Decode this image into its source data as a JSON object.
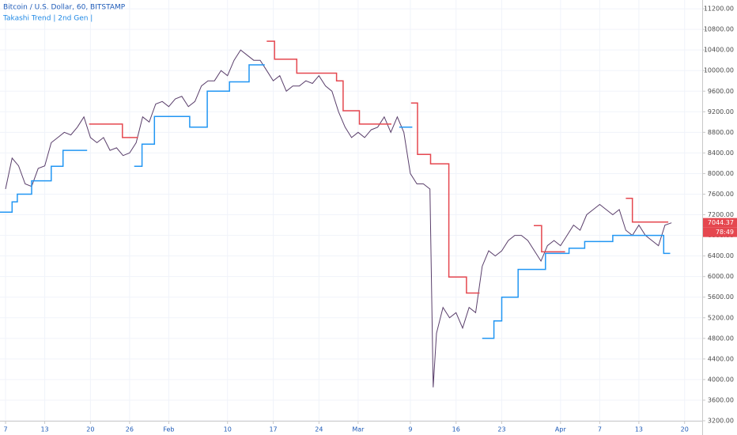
{
  "chart_data": {
    "type": "line",
    "title": "Bitcoin / U.S. Dollar, 60, BITSTAMP",
    "subtitle": "Takashi Trend | 2nd Gen |",
    "xlim": [
      -0.85,
      106.7
    ],
    "ylim": [
      3200,
      11370
    ],
    "xticks": [
      {
        "value": 0,
        "label": "7"
      },
      {
        "value": 6,
        "label": "13"
      },
      {
        "value": 13,
        "label": "20"
      },
      {
        "value": 19,
        "label": "26"
      },
      {
        "value": 25,
        "label": "Feb"
      },
      {
        "value": 34,
        "label": "10"
      },
      {
        "value": 41,
        "label": "17"
      },
      {
        "value": 48,
        "label": "24"
      },
      {
        "value": 54,
        "label": "Mar"
      },
      {
        "value": 62,
        "label": "9"
      },
      {
        "value": 69,
        "label": "16"
      },
      {
        "value": 76,
        "label": "23"
      },
      {
        "value": 85,
        "label": "Apr"
      },
      {
        "value": 91,
        "label": "7"
      },
      {
        "value": 97,
        "label": "13"
      },
      {
        "value": 104,
        "label": "20"
      }
    ],
    "yticks": [
      {
        "value": 3200,
        "label": "3200.00"
      },
      {
        "value": 3600,
        "label": "3600.00"
      },
      {
        "value": 4000,
        "label": "4000.00"
      },
      {
        "value": 4400,
        "label": "4400.00"
      },
      {
        "value": 4800,
        "label": "4800.00"
      },
      {
        "value": 5200,
        "label": "5200.00"
      },
      {
        "value": 5600,
        "label": "5600.00"
      },
      {
        "value": 6000,
        "label": "6000.00"
      },
      {
        "value": 6400,
        "label": "6400.00"
      },
      {
        "value": 6800,
        "label": "6800.00"
      },
      {
        "value": 7200,
        "label": "7200.00"
      },
      {
        "value": 7600,
        "label": "7600.00"
      },
      {
        "value": 8000,
        "label": "8000.00"
      },
      {
        "value": 8400,
        "label": "8400.00"
      },
      {
        "value": 8800,
        "label": "8800.00"
      },
      {
        "value": 9200,
        "label": "9200.00"
      },
      {
        "value": 9600,
        "label": "9600.00"
      },
      {
        "value": 10000,
        "label": "10000.00"
      },
      {
        "value": 10400,
        "label": "10400.00"
      },
      {
        "value": 10800,
        "label": "10800.00"
      },
      {
        "value": 11200,
        "label": "11200.00"
      }
    ],
    "last_price": 7044.37,
    "countdown": "78:49",
    "series": [
      {
        "color": "#5a3f6b",
        "x": [
          0,
          1,
          2,
          3,
          4,
          5,
          6,
          7,
          8,
          9,
          10,
          11,
          12,
          13,
          14,
          15,
          16,
          17,
          18,
          19,
          20,
          21,
          22,
          23,
          24,
          25,
          26,
          27,
          28,
          29,
          30,
          31,
          32,
          33,
          34,
          35,
          36,
          37,
          38,
          39,
          40,
          41,
          42,
          43,
          44,
          45,
          46,
          47,
          48,
          49,
          50,
          51,
          52,
          53,
          54,
          55,
          56,
          57,
          58,
          59,
          60,
          61,
          62,
          63,
          64,
          65,
          65.5,
          66,
          67,
          68,
          69,
          70,
          71,
          72,
          73,
          74,
          75,
          76,
          77,
          78,
          79,
          80,
          81,
          82,
          83,
          84,
          85,
          86,
          87,
          88,
          89,
          90,
          91,
          92,
          93,
          94,
          95,
          96,
          97,
          98,
          99,
          100,
          101,
          102
        ],
        "values": [
          7700,
          8300,
          8150,
          7800,
          7750,
          8100,
          8150,
          8600,
          8700,
          8800,
          8750,
          8900,
          9100,
          8700,
          8600,
          8700,
          8450,
          8500,
          8350,
          8400,
          8600,
          9100,
          9000,
          9350,
          9400,
          9300,
          9450,
          9500,
          9300,
          9400,
          9700,
          9800,
          9800,
          10000,
          9900,
          10200,
          10400,
          10300,
          10200,
          10200,
          10000,
          9800,
          9900,
          9600,
          9700,
          9700,
          9800,
          9750,
          9900,
          9700,
          9600,
          9200,
          8900,
          8700,
          8800,
          8700,
          8850,
          8900,
          9100,
          8800,
          9100,
          8800,
          8000,
          7800,
          7800,
          7700,
          3850,
          4900,
          5400,
          5200,
          5300,
          5000,
          5400,
          5300,
          6200,
          6500,
          6400,
          6500,
          6700,
          6800,
          6800,
          6700,
          6500,
          6300,
          6600,
          6700,
          6600,
          6800,
          7000,
          6900,
          7200,
          7300,
          7400,
          7300,
          7200,
          7300,
          6900,
          6800,
          7000,
          6800,
          6700,
          6600,
          7000,
          7044.37
        ]
      },
      {
        "color": "#e5474f",
        "x": [
          12.8,
          17.9,
          17.9,
          20.3,
          null,
          40,
          41.2,
          41.2,
          44.6,
          44.6,
          50.7,
          50.7,
          51.7,
          51.7,
          54.2,
          54.2,
          59.1,
          null,
          62.1,
          63.1,
          63.1,
          65.1,
          65.1,
          67.9,
          67.9,
          70.6,
          70.6,
          72.6,
          null,
          80.9,
          82.1,
          82.1,
          85.7,
          null,
          95,
          96,
          96,
          101.5
        ],
        "values": [
          8960,
          8960,
          8700,
          8700,
          null,
          10570,
          10570,
          10220,
          10220,
          9950,
          9950,
          9800,
          9800,
          9220,
          9220,
          8960,
          8960,
          null,
          9370,
          9370,
          8370,
          8370,
          8190,
          8190,
          5990,
          5990,
          5680,
          5680,
          null,
          6990,
          6990,
          6480,
          6480,
          null,
          7520,
          7520,
          7060,
          7060
        ]
      },
      {
        "color": "#2196f3",
        "x": [
          -0.85,
          1,
          1,
          1.8,
          1.8,
          4,
          4,
          7,
          7,
          8.8,
          8.8,
          12.5,
          null,
          19.7,
          20.9,
          20.9,
          22.8,
          22.8,
          28.2,
          28.2,
          30.9,
          30.9,
          34.3,
          34.3,
          37.3,
          37.3,
          39.7,
          null,
          60.3,
          62.3,
          null,
          73,
          74.8,
          74.8,
          76,
          76,
          78.5,
          78.5,
          82.7,
          82.7,
          86.3,
          86.3,
          88.7,
          88.7,
          93,
          93,
          100.8,
          100.8,
          101.8
        ],
        "values": [
          7250,
          7250,
          7450,
          7450,
          7600,
          7600,
          7860,
          7860,
          8140,
          8140,
          8450,
          8450,
          null,
          8140,
          8140,
          8570,
          8570,
          9110,
          9110,
          8900,
          8900,
          9600,
          9600,
          9780,
          9780,
          10110,
          10110,
          null,
          8900,
          8900,
          null,
          4800,
          4800,
          5140,
          5140,
          5600,
          5600,
          6140,
          6140,
          6450,
          6450,
          6550,
          6550,
          6680,
          6680,
          6800,
          6800,
          6450,
          6450
        ]
      }
    ]
  }
}
